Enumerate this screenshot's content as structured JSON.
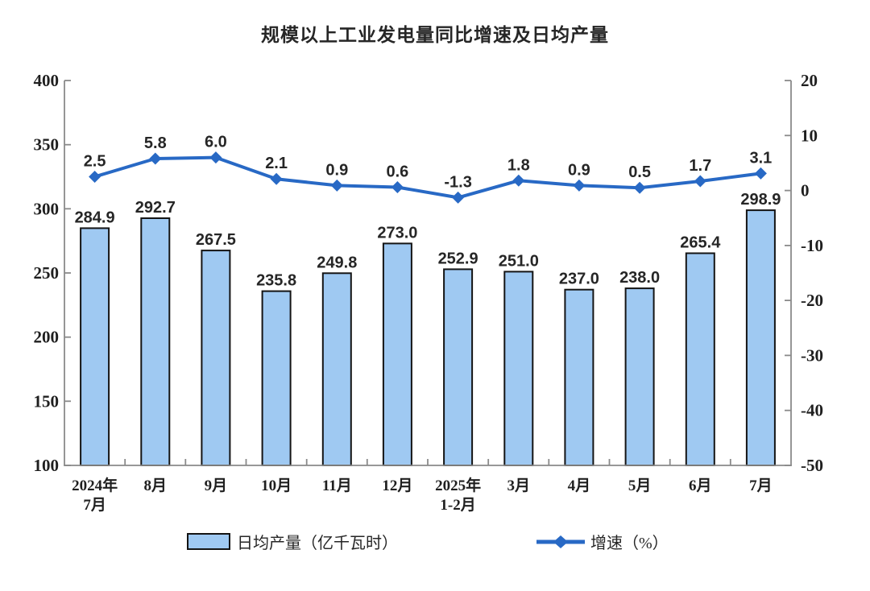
{
  "chart_data": {
    "type": "bar+line",
    "title": "规模以上工业发电量同比增速及日均产量",
    "categories": [
      [
        "2024年",
        "7月"
      ],
      [
        "8月"
      ],
      [
        "9月"
      ],
      [
        "10月"
      ],
      [
        "11月"
      ],
      [
        "12月"
      ],
      [
        "2025年",
        "1-2月"
      ],
      [
        "3月"
      ],
      [
        "4月"
      ],
      [
        "5月"
      ],
      [
        "6月"
      ],
      [
        "7月"
      ]
    ],
    "series": [
      {
        "name": "日均产量（亿千瓦时）",
        "type": "bar",
        "axis": "left",
        "values": [
          284.9,
          292.7,
          267.5,
          235.8,
          249.8,
          273.0,
          252.9,
          251.0,
          237.0,
          238.0,
          265.4,
          298.9
        ]
      },
      {
        "name": "增速（%）",
        "type": "line",
        "axis": "right",
        "values": [
          2.5,
          5.8,
          6.0,
          2.1,
          0.9,
          0.6,
          -1.3,
          1.8,
          0.9,
          0.5,
          1.7,
          3.1
        ]
      }
    ],
    "left_axis": {
      "min": 100,
      "max": 400,
      "step": 50,
      "ticks": [
        400,
        350,
        300,
        250,
        200,
        150,
        100
      ]
    },
    "right_axis": {
      "min": -50,
      "max": 20,
      "step": 10,
      "ticks": [
        20,
        10,
        0,
        -10,
        -20,
        -30,
        -40,
        -50
      ]
    },
    "grid": false,
    "legend_position": "bottom",
    "colors": {
      "bar_fill": "#9FC9F2",
      "bar_border": "#141414",
      "line": "#2869C5",
      "axis": "#8A8A8A",
      "value_label": "#262626",
      "axis_label": "#1F1F1F",
      "title": "#262626"
    }
  }
}
